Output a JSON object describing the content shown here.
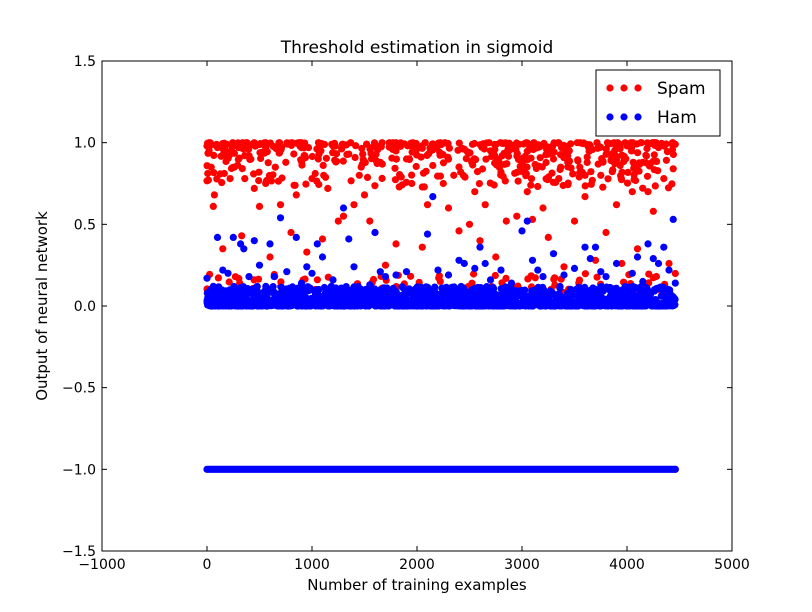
{
  "chart_data": {
    "type": "scatter",
    "title": "Threshold estimation in sigmoid",
    "xlabel": "Number of training examples",
    "ylabel": "Output of neural network",
    "xlim": [
      -1000,
      5000
    ],
    "ylim": [
      -1.5,
      1.5
    ],
    "xticks": [
      -1000,
      0,
      1000,
      2000,
      3000,
      4000,
      5000
    ],
    "yticks": [
      -1.5,
      -1.0,
      -0.5,
      0.0,
      0.5,
      1.0,
      1.5
    ],
    "xtick_labels": [
      "−1000",
      "0",
      "1000",
      "2000",
      "3000",
      "4000",
      "5000"
    ],
    "ytick_labels": [
      "−1.5",
      "−1.0",
      "−0.5",
      "0.0",
      "0.5",
      "1.0",
      "1.5"
    ],
    "grid": false,
    "legend": "top-right",
    "series": [
      {
        "name": "Spam",
        "color": "#ff0000",
        "x_range": [
          0,
          4460
        ],
        "points_estimated": [
          [
            0,
            0.98
          ],
          [
            20,
            0.95
          ],
          [
            40,
            0.85
          ],
          [
            60,
            0.61
          ],
          [
            70,
            0.68
          ],
          [
            100,
            0.97
          ],
          [
            150,
            0.35
          ],
          [
            180,
            0.92
          ],
          [
            220,
            0.78
          ],
          [
            260,
            0.85
          ],
          [
            300,
            0.99
          ],
          [
            330,
            0.43
          ],
          [
            360,
            0.78
          ],
          [
            400,
            0.92
          ],
          [
            450,
            0.72
          ],
          [
            500,
            0.61
          ],
          [
            560,
            0.97
          ],
          [
            600,
            0.3
          ],
          [
            650,
            0.85
          ],
          [
            700,
            0.62
          ],
          [
            750,
            0.88
          ],
          [
            800,
            0.45
          ],
          [
            850,
            0.68
          ],
          [
            900,
            0.97
          ],
          [
            950,
            0.33
          ],
          [
            1000,
            0.78
          ],
          [
            1060,
            0.9
          ],
          [
            1100,
            0.41
          ],
          [
            1150,
            0.72
          ],
          [
            1200,
            0.98
          ],
          [
            1250,
            0.52
          ],
          [
            1300,
            0.55
          ],
          [
            1350,
            0.93
          ],
          [
            1400,
            0.62
          ],
          [
            1450,
            0.8
          ],
          [
            1500,
            0.68
          ],
          [
            1550,
            0.52
          ],
          [
            1600,
            0.45
          ],
          [
            1650,
            0.88
          ],
          [
            1700,
            0.25
          ],
          [
            1750,
            0.97
          ],
          [
            1800,
            0.38
          ],
          [
            1850,
            0.79
          ],
          [
            1900,
            0.9
          ],
          [
            1950,
            0.75
          ],
          [
            2000,
            0.97
          ],
          [
            2050,
            0.36
          ],
          [
            2100,
            0.62
          ],
          [
            2150,
            0.86
          ],
          [
            2200,
            0.99
          ],
          [
            2250,
            0.75
          ],
          [
            2300,
            0.6
          ],
          [
            2350,
            0.8
          ],
          [
            2400,
            0.46
          ],
          [
            2450,
            0.96
          ],
          [
            2500,
            0.5
          ],
          [
            2550,
            0.7
          ],
          [
            2600,
            0.4
          ],
          [
            2650,
            0.62
          ],
          [
            2700,
            0.95
          ],
          [
            2750,
            0.3
          ],
          [
            2800,
            0.82
          ],
          [
            2850,
            0.52
          ],
          [
            2900,
            0.98
          ],
          [
            2950,
            0.55
          ],
          [
            3000,
            0.88
          ],
          [
            3050,
            0.7
          ],
          [
            3100,
            0.53
          ],
          [
            3150,
            0.97
          ],
          [
            3200,
            0.6
          ],
          [
            3250,
            0.42
          ],
          [
            3300,
            0.9
          ],
          [
            3350,
            0.78
          ],
          [
            3400,
            0.24
          ],
          [
            3450,
            0.95
          ],
          [
            3500,
            0.52
          ],
          [
            3550,
            0.85
          ],
          [
            3600,
            0.67
          ],
          [
            3650,
            0.98
          ],
          [
            3700,
            0.28
          ],
          [
            3750,
            0.8
          ],
          [
            3800,
            0.45
          ],
          [
            3850,
            0.93
          ],
          [
            3900,
            0.62
          ],
          [
            3950,
            0.26
          ],
          [
            4000,
            0.98
          ],
          [
            4050,
            0.7
          ],
          [
            4100,
            0.35
          ],
          [
            4150,
            0.88
          ],
          [
            4200,
            0.7
          ],
          [
            4250,
            0.58
          ],
          [
            4300,
            0.97
          ],
          [
            4350,
            0.78
          ],
          [
            4400,
            0.26
          ],
          [
            4440,
            0.84
          ],
          [
            4460,
            0.99
          ]
        ]
      },
      {
        "name": "Ham",
        "color": "#0000ff",
        "x_range": [
          0,
          4460
        ],
        "baseline_band_y": [
          0.0,
          0.12
        ],
        "bottom_line_y": -1.0,
        "points_estimated": [
          [
            0,
            0.17
          ],
          [
            60,
            0.12
          ],
          [
            100,
            0.42
          ],
          [
            150,
            0.22
          ],
          [
            200,
            0.2
          ],
          [
            250,
            0.42
          ],
          [
            320,
            0.38
          ],
          [
            350,
            0.35
          ],
          [
            400,
            0.18
          ],
          [
            450,
            0.4
          ],
          [
            500,
            0.25
          ],
          [
            560,
            0.12
          ],
          [
            600,
            0.38
          ],
          [
            640,
            0.18
          ],
          [
            700,
            0.54
          ],
          [
            760,
            0.21
          ],
          [
            850,
            0.42
          ],
          [
            900,
            0.14
          ],
          [
            950,
            0.24
          ],
          [
            1000,
            0.2
          ],
          [
            1050,
            0.38
          ],
          [
            1100,
            0.3
          ],
          [
            1200,
            0.16
          ],
          [
            1300,
            0.6
          ],
          [
            1350,
            0.41
          ],
          [
            1400,
            0.24
          ],
          [
            1450,
            0.1
          ],
          [
            1550,
            0.13
          ],
          [
            1600,
            0.45
          ],
          [
            1650,
            0.21
          ],
          [
            1700,
            0.18
          ],
          [
            1800,
            0.19
          ],
          [
            1900,
            0.21
          ],
          [
            2000,
            0.1
          ],
          [
            2100,
            0.44
          ],
          [
            2150,
            0.67
          ],
          [
            2200,
            0.22
          ],
          [
            2300,
            0.19
          ],
          [
            2400,
            0.28
          ],
          [
            2450,
            0.26
          ],
          [
            2550,
            0.23
          ],
          [
            2600,
            0.36
          ],
          [
            2650,
            0.26
          ],
          [
            2700,
            0.16
          ],
          [
            2800,
            0.22
          ],
          [
            2900,
            0.14
          ],
          [
            3000,
            0.46
          ],
          [
            3050,
            0.52
          ],
          [
            3100,
            0.28
          ],
          [
            3150,
            0.22
          ],
          [
            3200,
            0.18
          ],
          [
            3300,
            0.32
          ],
          [
            3400,
            0.19
          ],
          [
            3500,
            0.23
          ],
          [
            3600,
            0.36
          ],
          [
            3650,
            0.29
          ],
          [
            3700,
            0.36
          ],
          [
            3750,
            0.21
          ],
          [
            3800,
            0.18
          ],
          [
            3900,
            0.26
          ],
          [
            3950,
            0.08
          ],
          [
            4050,
            0.2
          ],
          [
            4100,
            0.3
          ],
          [
            4150,
            0.15
          ],
          [
            4200,
            0.38
          ],
          [
            4250,
            0.29
          ],
          [
            4300,
            0.26
          ],
          [
            4350,
            0.36
          ],
          [
            4400,
            0.22
          ],
          [
            4440,
            0.53
          ],
          [
            4460,
            0.14
          ]
        ]
      }
    ]
  }
}
